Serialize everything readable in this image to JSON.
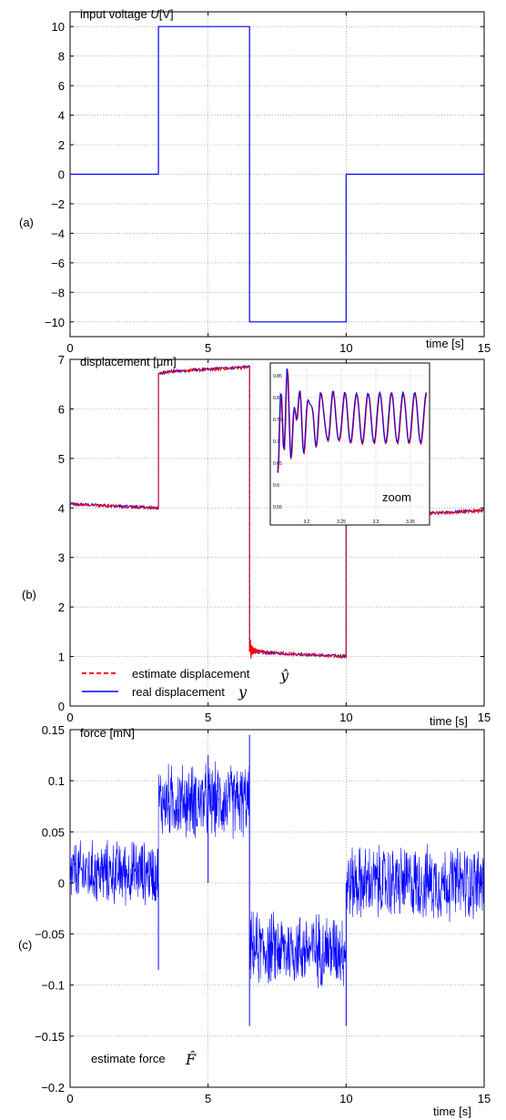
{
  "figure": {
    "panels": [
      {
        "label": "(a)",
        "title": "input voltage U[V]",
        "xlabel": "time [s]"
      },
      {
        "label": "(b)",
        "title": "displacement [μm]",
        "xlabel": "time [s]"
      },
      {
        "label": "(c)",
        "title": "force [mN]",
        "xlabel": "time [s]"
      }
    ]
  },
  "colors": {
    "blue": "#0000ff",
    "red": "#ff0000",
    "grid": "#999999"
  },
  "chart_data": [
    {
      "type": "line",
      "title": "input voltage U[V]",
      "xlabel": "time [s]",
      "ylabel": "",
      "xlim": [
        0,
        15
      ],
      "ylim": [
        -11,
        11
      ],
      "xticks": [
        0,
        5,
        10,
        15
      ],
      "yticks": [
        -10,
        -8,
        -6,
        -4,
        -2,
        0,
        2,
        4,
        6,
        8,
        10
      ],
      "grid": true,
      "series": [
        {
          "color": "#0000ff",
          "x": [
            0,
            3.2,
            3.2,
            6.5,
            6.5,
            10,
            10,
            15
          ],
          "y": [
            0,
            0,
            10,
            10,
            -10,
            -10,
            0,
            0
          ]
        }
      ]
    },
    {
      "type": "line",
      "title": "displacement [μm]",
      "xlabel": "time [s]",
      "ylabel": "",
      "xlim": [
        0,
        15
      ],
      "ylim": [
        0,
        7
      ],
      "xticks": [
        0,
        5,
        10,
        15
      ],
      "yticks": [
        0,
        1,
        2,
        3,
        4,
        5,
        6,
        7
      ],
      "grid": true,
      "legend": "bottom-left",
      "series": [
        {
          "name": "estimate displacement ŷ",
          "color": "#ff0000",
          "style": "dashed",
          "x": [
            0,
            3.2,
            3.2,
            3.5,
            6.5,
            6.5,
            7.0,
            10,
            10,
            15
          ],
          "y": [
            4.08,
            4.0,
            6.7,
            6.75,
            6.85,
            1.1,
            1.08,
            1.0,
            3.8,
            3.95
          ]
        },
        {
          "name": "real displacement y",
          "color": "#0000ff",
          "style": "solid",
          "x": [
            0,
            3.2,
            3.2,
            3.5,
            6.5,
            6.5,
            7.0,
            10,
            10,
            15
          ],
          "y": [
            4.08,
            4.0,
            6.7,
            6.75,
            6.85,
            1.1,
            1.08,
            1.0,
            3.8,
            3.95
          ]
        }
      ],
      "inset": {
        "annotation": "zoom",
        "xticks": [
          "3.2",
          "3.25",
          "3.3",
          "3.35"
        ],
        "yticks": [
          "0.85",
          "0.8",
          "0.75",
          "0.7",
          "0.65",
          "0.6",
          "0.55"
        ]
      }
    },
    {
      "type": "line",
      "title": "force [mN]",
      "xlabel": "time [s]",
      "ylabel": "",
      "xlim": [
        0,
        15
      ],
      "ylim": [
        -0.2,
        0.15
      ],
      "xticks": [
        0,
        5,
        10,
        15
      ],
      "yticks": [
        -0.2,
        -0.15,
        -0.1,
        -0.05,
        0,
        0.05,
        0.1,
        0.15
      ],
      "ytick_labels": [
        "−0.2",
        "−0.15",
        "−0.1",
        "−0.05",
        "0",
        "0.05",
        "0.1",
        "0.15"
      ],
      "grid": true,
      "legend": "bottom-left",
      "series": [
        {
          "name": "estimate force F̂",
          "color": "#0000ff",
          "segments": [
            {
              "x0": 0,
              "x1": 3.2,
              "mean": 0.01,
              "amp": 0.03
            },
            {
              "x0": 3.2,
              "x1": 6.5,
              "mean": 0.08,
              "amp": 0.035
            },
            {
              "x0": 6.5,
              "x1": 10,
              "mean": -0.065,
              "amp": 0.035
            },
            {
              "x0": 10,
              "x1": 15,
              "mean": 0.0,
              "amp": 0.035
            }
          ]
        }
      ]
    }
  ]
}
